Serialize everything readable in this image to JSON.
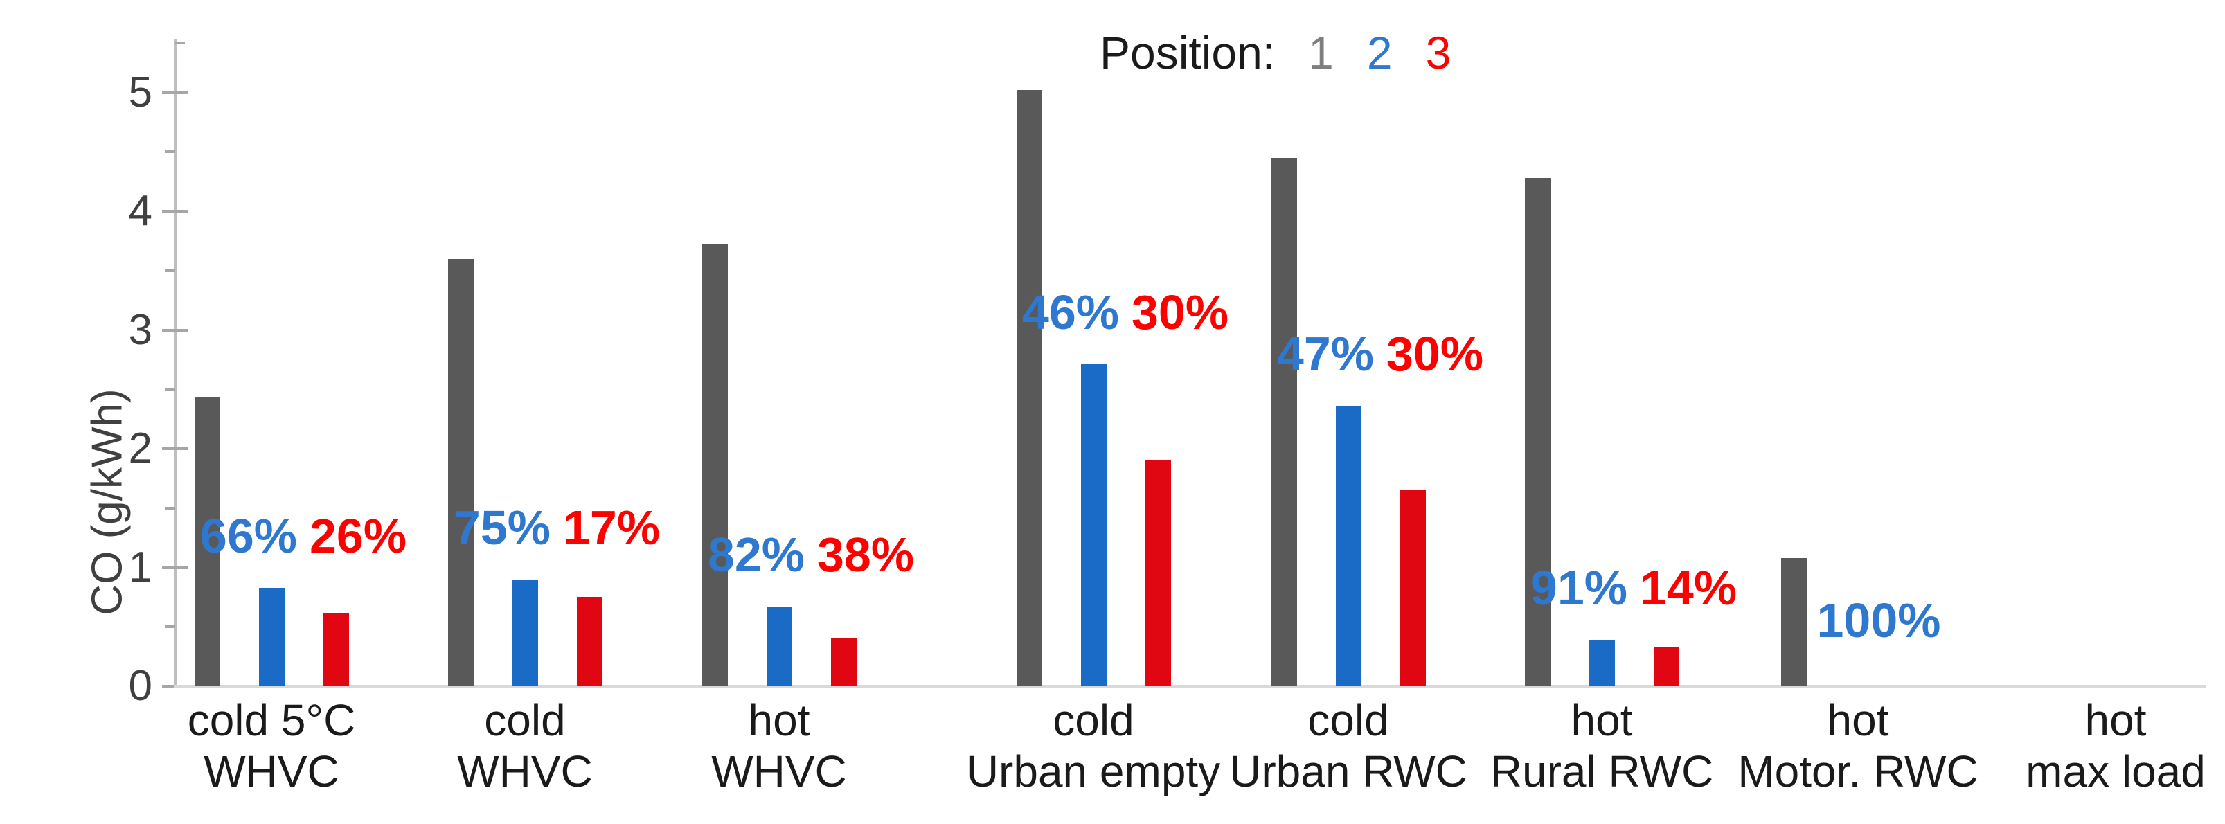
{
  "chart_data": {
    "type": "bar",
    "title": "",
    "xlabel": "",
    "ylabel": "CO (g/kWh)",
    "ylim": [
      0,
      5.5
    ],
    "y_ticks": [
      0,
      1,
      2,
      3,
      4,
      5
    ],
    "y_minor_ticks": [
      0.5,
      1.5,
      2.5,
      3.5,
      4.5
    ],
    "grid": false,
    "legend_position": "top-center",
    "legend_label": "Position:",
    "legend_entries": [
      {
        "name": "1",
        "color": "#7f7f7f"
      },
      {
        "name": "2",
        "color": "#2e78cf"
      },
      {
        "name": "3",
        "color": "#ff0000"
      }
    ],
    "series_colors": {
      "pos1": "#595959",
      "pos2": "#1a6bc6",
      "pos3": "#e00713"
    },
    "annotation_colors": {
      "pos2": "#2e78cf",
      "pos3": "#ff0000"
    },
    "categories": [
      "cold 5°C WHVC",
      "cold WHVC",
      "hot WHVC",
      "cold Urban empty",
      "cold Urban RWC",
      "hot Rural RWC",
      "hot Motor. RWC",
      "hot max load"
    ],
    "groups": [
      {
        "lines": [
          "cold 5°C",
          "WHVC"
        ],
        "pos1": 2.43,
        "pos2": 0.83,
        "pos3": 0.61,
        "pct2": "66%",
        "pct3": "26%"
      },
      {
        "lines": [
          "cold",
          "WHVC"
        ],
        "pos1": 3.6,
        "pos2": 0.9,
        "pos3": 0.75,
        "pct2": "75%",
        "pct3": "17%"
      },
      {
        "lines": [
          "hot",
          "WHVC"
        ],
        "pos1": 3.72,
        "pos2": 0.67,
        "pos3": 0.41,
        "pct2": "82%",
        "pct3": "38%"
      },
      {
        "lines": [
          "cold",
          "Urban empty"
        ],
        "pos1": 5.02,
        "pos2": 2.71,
        "pos3": 1.9,
        "pct2": "46%",
        "pct3": "30%"
      },
      {
        "lines": [
          "cold",
          "Urban RWC"
        ],
        "pos1": 4.45,
        "pos2": 2.36,
        "pos3": 1.65,
        "pct2": "47%",
        "pct3": "30%"
      },
      {
        "lines": [
          "hot",
          "Rural RWC"
        ],
        "pos1": 4.28,
        "pos2": 0.39,
        "pos3": 0.33,
        "pct2": "91%",
        "pct3": "14%"
      },
      {
        "lines": [
          "hot",
          "Motor. RWC"
        ],
        "pos1": 1.08,
        "pos2": 0,
        "pos3": null,
        "pct2": "100%",
        "pct3": null
      },
      {
        "lines": [
          "hot",
          "max load"
        ],
        "pos1": null,
        "pos2": null,
        "pos3": null,
        "pct2": null,
        "pct3": null
      }
    ]
  }
}
